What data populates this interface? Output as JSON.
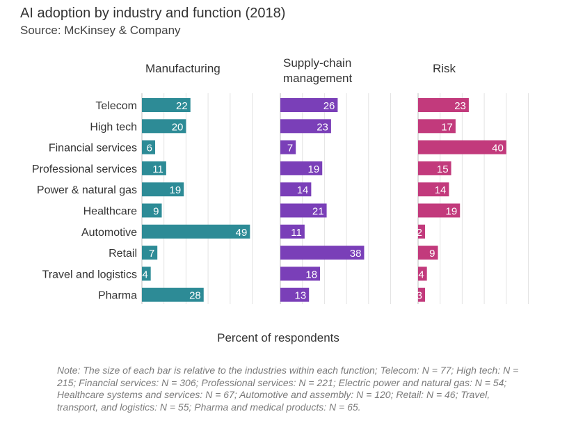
{
  "chart_data": {
    "type": "bar",
    "orientation": "horizontal",
    "title": "AI adoption by industry and function (2018)",
    "subtitle": "Source: McKinsey & Company",
    "xlabel": "Percent of respondents",
    "categories": [
      "Telecom",
      "High tech",
      "Financial services",
      "Professional services",
      "Power & natural gas",
      "Healthcare",
      "Automotive",
      "Retail",
      "Travel and logistics",
      "Pharma"
    ],
    "series": [
      {
        "name": "Manufacturing",
        "color": "#2d8b96",
        "values": [
          22,
          20,
          6,
          11,
          19,
          9,
          49,
          7,
          4,
          28
        ]
      },
      {
        "name": "Supply-chain management",
        "color": "#7a3fb8",
        "values": [
          26,
          23,
          7,
          19,
          14,
          21,
          11,
          38,
          18,
          13
        ]
      },
      {
        "name": "Risk",
        "color": "#c23a7c",
        "values": [
          23,
          17,
          40,
          15,
          14,
          19,
          2,
          9,
          4,
          3
        ]
      }
    ],
    "xlim": [
      0,
      50
    ],
    "grid": true,
    "data_labels": true
  },
  "note": "Note: The size of each bar is relative to the industries within each function; Telecom: N = 77; High tech: N = 215; Financial services: N = 306; Professional services: N = 221; Electric power and natural gas: N = 54; Healthcare systems and services: N = 67; Automotive and assembly: N = 120; Retail: N = 46; Travel, transport, and logistics: N = 55; Pharma and medical products: N = 65."
}
